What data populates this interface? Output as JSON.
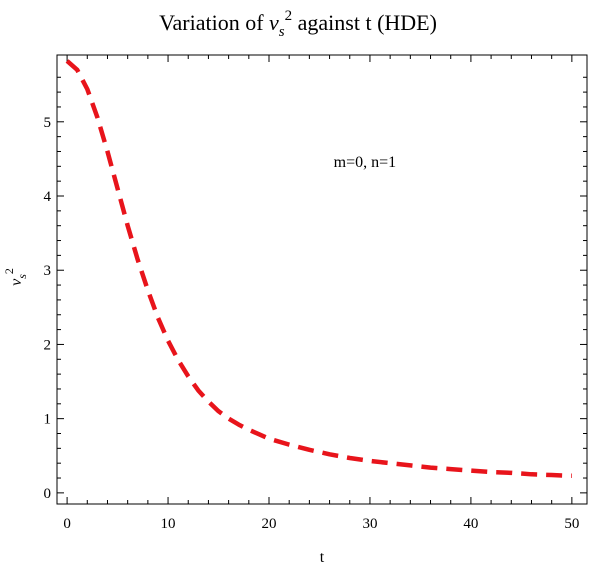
{
  "chart_data": {
    "type": "line",
    "title": "Variation of v_s^2 against t (HDE)",
    "title_parts": {
      "pre": "Variation of ",
      "var": "v",
      "sub": "s",
      "sup": "2",
      "post": " against t (HDE)"
    },
    "xlabel": "t",
    "ylabel_parts": {
      "var": "v",
      "sub": "s",
      "sup": "2"
    },
    "annotation": "m=0,  n=1",
    "xlim": [
      -1,
      51.5
    ],
    "ylim": [
      -0.15,
      5.9
    ],
    "x_ticks": [
      0,
      10,
      20,
      30,
      40,
      50
    ],
    "y_ticks": [
      0,
      1,
      2,
      3,
      4,
      5
    ],
    "grid": false,
    "series": [
      {
        "color": "#e8141b",
        "line_style": "dashed",
        "x": [
          0,
          1,
          2,
          3,
          4,
          5,
          6,
          7,
          8,
          9,
          10,
          11,
          12,
          13,
          14,
          15,
          16,
          17,
          18,
          19,
          20,
          22,
          24,
          26,
          28,
          30,
          32,
          34,
          36,
          38,
          40,
          42,
          44,
          46,
          48,
          50
        ],
        "y": [
          5.82,
          5.7,
          5.44,
          5.06,
          4.6,
          4.1,
          3.6,
          3.14,
          2.73,
          2.36,
          2.05,
          1.79,
          1.57,
          1.38,
          1.23,
          1.1,
          1.0,
          0.92,
          0.85,
          0.79,
          0.73,
          0.65,
          0.58,
          0.52,
          0.47,
          0.43,
          0.4,
          0.37,
          0.34,
          0.32,
          0.3,
          0.28,
          0.27,
          0.25,
          0.24,
          0.23
        ]
      }
    ]
  }
}
